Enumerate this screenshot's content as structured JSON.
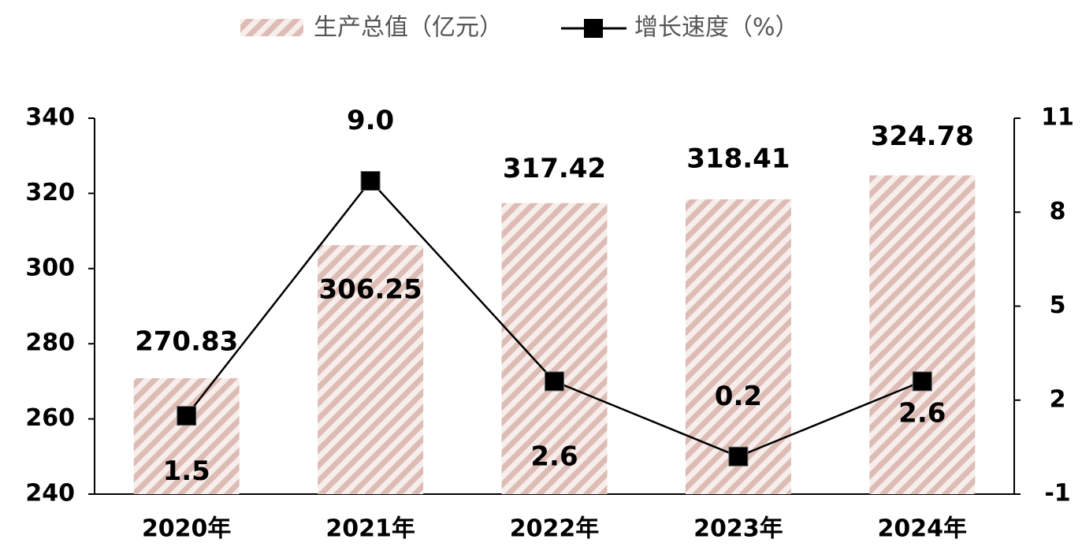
{
  "chart_data": {
    "type": "bar-line",
    "categories": [
      "2020年",
      "2021年",
      "2022年",
      "2023年",
      "2024年"
    ],
    "series": [
      {
        "name": "生产总值（亿元）",
        "type": "bar",
        "color": "#dcbcb4",
        "values": [
          270.83,
          306.25,
          317.42,
          318.41,
          324.78
        ]
      },
      {
        "name": "增长速度（%）",
        "type": "line",
        "axis": "y2",
        "color": "#000000",
        "values": [
          1.5,
          9.0,
          2.6,
          0.2,
          2.6
        ],
        "value_labels": [
          "1.5",
          "9.0",
          "2.6",
          "0.2",
          "2.6"
        ]
      }
    ],
    "ylim": [
      240,
      340
    ],
    "yticks": [
      240,
      260,
      280,
      300,
      320,
      340
    ],
    "y2lim": [
      -1,
      11
    ],
    "y2ticks": [
      -1,
      2,
      5,
      8,
      11
    ],
    "legend": "top"
  }
}
